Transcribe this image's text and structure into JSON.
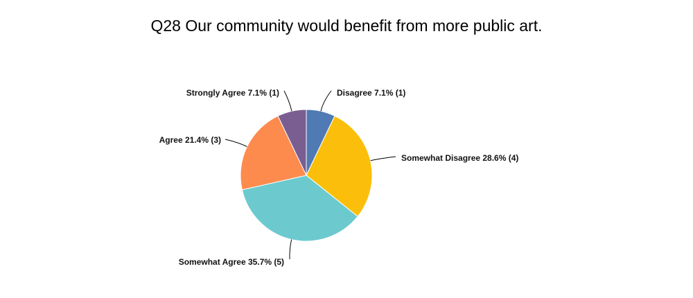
{
  "chart_data": {
    "type": "pie",
    "title": "Q28 Our community would benefit from more public art.",
    "start_angle_deg": 0,
    "direction": "clockwise",
    "slices": [
      {
        "name": "Disagree",
        "percent": 7.1,
        "count": 1,
        "label": "Disagree 7.1% (1)",
        "color": "#4f7ab3"
      },
      {
        "name": "Somewhat Disagree",
        "percent": 28.6,
        "count": 4,
        "label": "Somewhat Disagree 28.6% (4)",
        "color": "#fbbf0b"
      },
      {
        "name": "Somewhat Agree",
        "percent": 35.7,
        "count": 5,
        "label": "Somewhat Agree 35.7% (5)",
        "color": "#6ccacf"
      },
      {
        "name": "Agree",
        "percent": 21.4,
        "count": 3,
        "label": "Agree 21.4% (3)",
        "color": "#fe8b4e"
      },
      {
        "name": "Strongly Agree",
        "percent": 7.1,
        "count": 1,
        "label": "Strongly Agree 7.1% (1)",
        "color": "#7b5e91"
      }
    ]
  }
}
